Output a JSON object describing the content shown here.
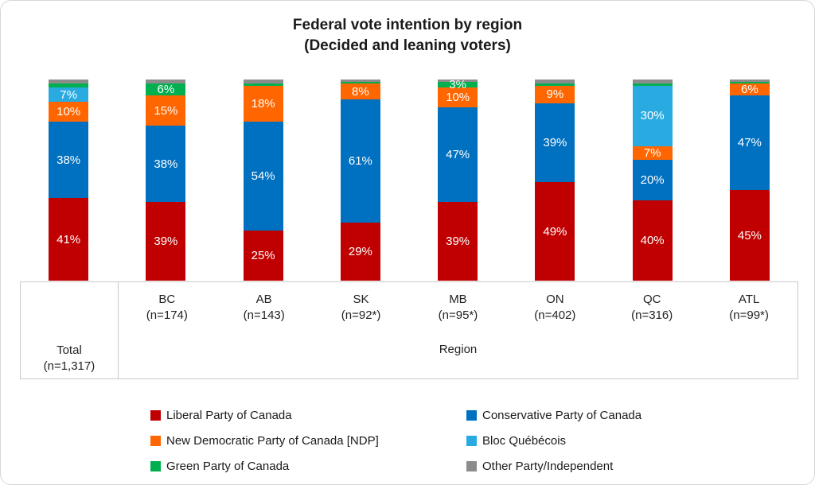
{
  "title": {
    "line1": "Federal vote intention by region",
    "line2": "(Decided and leaning voters)"
  },
  "axis": {
    "group_label": "Region"
  },
  "colors": {
    "liberal_red": "#C00000",
    "conservative_blue": "#0070C0",
    "ndp_orange": "#FF6600",
    "bloc_light_blue": "#29ABE2",
    "green_party_green": "#00B050",
    "other_gray": "#8C8C8C",
    "axis_line_gray": "#C8C8C8",
    "label_white": "#FFFFFF"
  },
  "chart_data": {
    "type": "bar",
    "variant": "stacked-100",
    "title": "Federal vote intention by region (Decided and leaning voters)",
    "unit": "%",
    "ylim": [
      0,
      100
    ],
    "grid": false,
    "legend_position": "bottom",
    "categories": [
      {
        "label": "Total",
        "sublabel": "(n=1,317)",
        "group": ""
      },
      {
        "label": "BC",
        "sublabel": "(n=174)",
        "group": "Region"
      },
      {
        "label": "AB",
        "sublabel": "(n=143)",
        "group": "Region"
      },
      {
        "label": "SK",
        "sublabel": "(n=92*)",
        "group": "Region"
      },
      {
        "label": "MB",
        "sublabel": "(n=95*)",
        "group": "Region"
      },
      {
        "label": "ON",
        "sublabel": "(n=402)",
        "group": "Region"
      },
      {
        "label": "QC",
        "sublabel": "(n=316)",
        "group": "Region"
      },
      {
        "label": "ATL",
        "sublabel": "(n=99*)",
        "group": "Region"
      }
    ],
    "series": [
      {
        "name": "Liberal Party of Canada",
        "color": "#C00000",
        "values": [
          41,
          39,
          25,
          29,
          39,
          49,
          40,
          45
        ],
        "labels": [
          "41%",
          "39%",
          "25%",
          "29%",
          "39%",
          "49%",
          "40%",
          "45%"
        ]
      },
      {
        "name": "Conservative Party of Canada",
        "color": "#0070C0",
        "values": [
          38,
          38,
          54,
          61,
          47,
          39,
          20,
          47
        ],
        "labels": [
          "38%",
          "38%",
          "54%",
          "61%",
          "47%",
          "39%",
          "20%",
          "47%"
        ]
      },
      {
        "name": "New Democratic Party of Canada [NDP]",
        "color": "#FF6600",
        "values": [
          10,
          15,
          18,
          8,
          10,
          9,
          7,
          6
        ],
        "labels": [
          "10%",
          "15%",
          "18%",
          "8%",
          "10%",
          "9%",
          "7%",
          "6%"
        ]
      },
      {
        "name": "Bloc Québécois",
        "color": "#29ABE2",
        "values": [
          7,
          0,
          0,
          0,
          0,
          0,
          30,
          0
        ],
        "labels": [
          "7%",
          null,
          null,
          null,
          null,
          null,
          "30%",
          null
        ]
      },
      {
        "name": "Green Party of Canada",
        "color": "#00B050",
        "values": [
          2,
          6,
          1,
          1,
          3,
          1,
          1,
          1
        ],
        "labels": [
          null,
          "6%",
          null,
          null,
          "3%",
          null,
          null,
          null
        ]
      },
      {
        "name": "Other Party/Independent",
        "color": "#8C8C8C",
        "values": [
          2,
          2,
          2,
          1,
          1,
          2,
          2,
          1
        ],
        "labels": [
          null,
          null,
          null,
          null,
          null,
          null,
          null,
          null
        ]
      }
    ]
  }
}
